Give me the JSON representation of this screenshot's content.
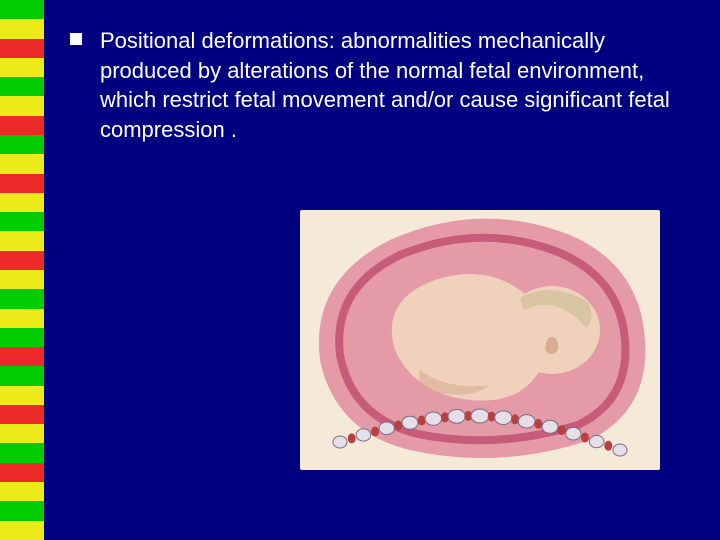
{
  "slide": {
    "background_color": "#000080",
    "bullet": {
      "term": "Positional deformations",
      "colon": ":",
      "definition": " abnormalities  mechanically produced by alterations of the normal fetal environment, which restrict fetal movement and/or cause significant fetal compression ."
    },
    "stripe_colors": [
      "#00cc00",
      "#edea19",
      "#ed2a2a",
      "#edea19",
      "#00cc00",
      "#edea19",
      "#ed2a2a",
      "#00cc00",
      "#edea19",
      "#ed2a2a",
      "#edea19",
      "#00cc00",
      "#edea19",
      "#ed2a2a",
      "#edea19",
      "#00cc00",
      "#edea19",
      "#00cc00",
      "#ed2a2a",
      "#00cc00",
      "#edea19",
      "#ed2a2a",
      "#edea19",
      "#00cc00",
      "#ed2a2a",
      "#edea19",
      "#00cc00",
      "#edea19"
    ],
    "illustration": {
      "description": "fetus-in-pelvis-compression-diagram",
      "bg": "#f5ead8",
      "uterus_outer": "#e59aa8",
      "uterus_wall": "#c65b7a",
      "fetus_skin": "#f0d2bc",
      "fetus_shadow": "#d6a98c",
      "hair": "#d9c5a1",
      "spine_bone": "#e6dfe8",
      "spine_disc": "#b84040",
      "spine_stroke": "#7a6a88"
    },
    "text_color": "#ffffff",
    "font_size_pt": 17
  }
}
